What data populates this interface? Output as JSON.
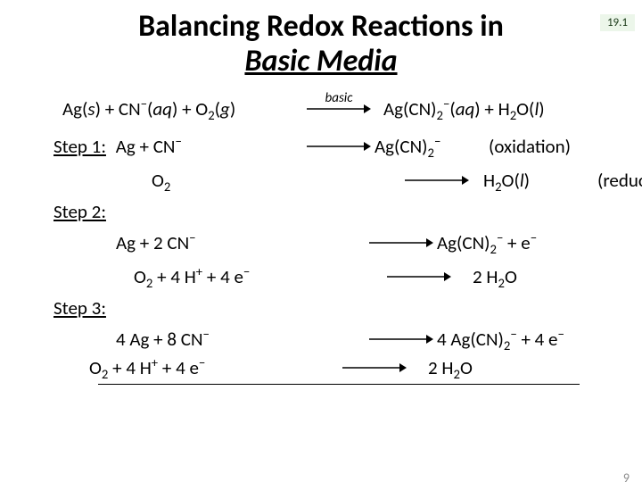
{
  "section_badge": "19.1",
  "page_number": "9",
  "title": {
    "line1": "Balancing Redox Reactions in",
    "line2": "Basic Media"
  },
  "overall": {
    "lhs_html": "Ag(<i>s</i>) + CN<sup>−</sup>(<i>aq</i>) + O<sub>2</sub>(<i>g</i>)",
    "arrow_label": "basic",
    "rhs_html": "Ag(CN)<sub>2</sub><sup>−</sup>(<i>aq</i>) + H<sub>2</sub>O(<i>l</i>)"
  },
  "step1": {
    "label": "Step 1:",
    "ox": {
      "lhs_html": "Ag + CN<sup>−</sup>",
      "rhs_html": "Ag(CN)<sub>2</sub><sup>−</sup>",
      "note": "(oxidation)"
    },
    "red": {
      "lhs_html": "O<sub>2</sub>",
      "rhs_html": "H<sub>2</sub>O(<i>l</i>)",
      "note": "(reduction)"
    }
  },
  "step2": {
    "label": "Step 2:",
    "a": {
      "lhs_html": "Ag + 2 CN<sup>−</sup>",
      "rhs_html": "Ag(CN)<sub>2</sub><sup>−</sup>  +  e<sup>−</sup>"
    },
    "b": {
      "lhs_html": "O<sub>2</sub> + 4 H<sup>+</sup> + 4 e<sup>−</sup>",
      "rhs_html": "2 H<sub>2</sub>O"
    }
  },
  "step3": {
    "label": "Step 3:",
    "a": {
      "lhs_html": "4 Ag + 8 CN<sup>−</sup>",
      "rhs_html": "4 Ag(CN)<sub>2</sub><sup>−</sup>  + 4 e<sup>−</sup>"
    },
    "b": {
      "lhs_html": "O<sub>2</sub> + 4 H<sup>+</sup> + 4 e<sup>−</sup>",
      "rhs_html": "2 H<sub>2</sub>O"
    }
  },
  "colors": {
    "badge_bg": "#ecf6ea",
    "text": "#000000",
    "page_num": "#8a8a8a"
  }
}
